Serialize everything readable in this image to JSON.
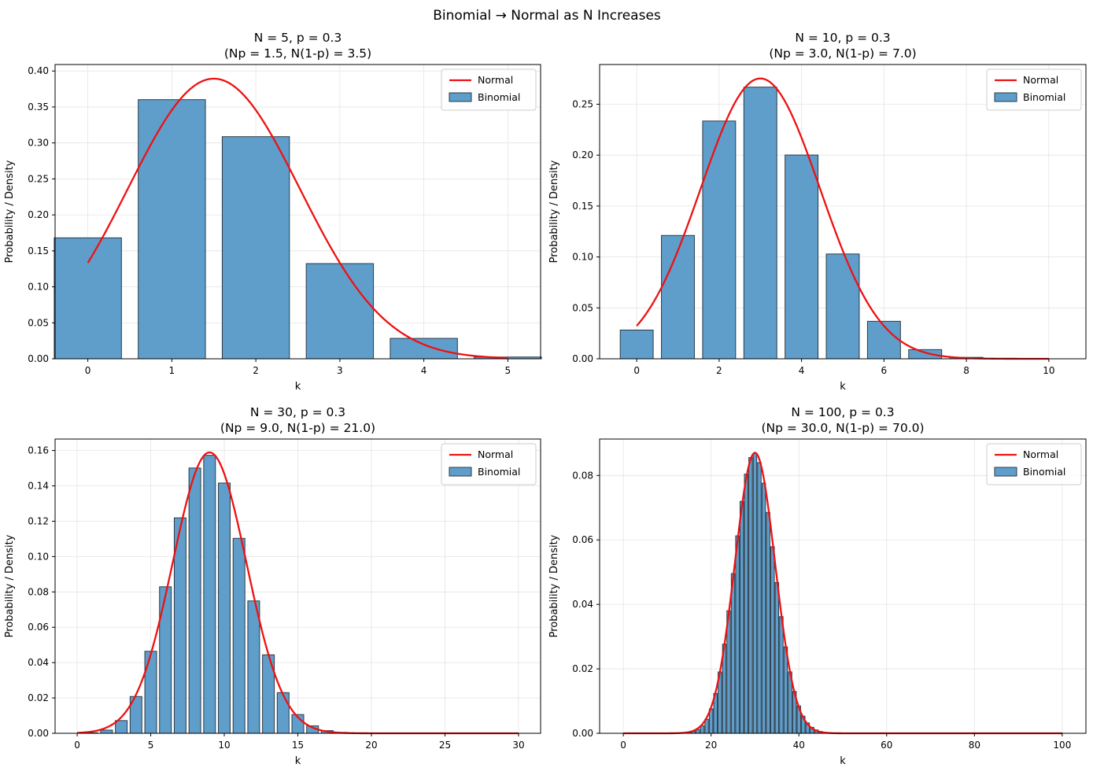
{
  "figure_title": "Binomial → Normal as N Increases",
  "colors": {
    "bar_fill": "#5f9ecb",
    "bar_edge": "#2b3a46",
    "normal_line": "#ee1111",
    "grid": "#e4e4e4"
  },
  "chart_data": [
    {
      "type": "bar",
      "title_line1": "N = 5, p = 0.3",
      "title_line2": "(Np = 1.5, N(1-p) = 3.5)",
      "xlabel": "k",
      "ylabel": "Probability / Density",
      "xlim": [
        -0.39,
        5.39
      ],
      "ylim": [
        0,
        0.409
      ],
      "xticks": [
        0,
        1,
        2,
        3,
        4,
        5
      ],
      "yticks": [
        0.0,
        0.05,
        0.1,
        0.15,
        0.2,
        0.25,
        0.3,
        0.35,
        0.4
      ],
      "ytick_decimals": 2,
      "n": 5,
      "p": 0.3,
      "bar_width": 0.8,
      "binomial_values": [
        0.16807,
        0.36015,
        0.3087,
        0.1323,
        0.02835,
        0.00243
      ],
      "normal": {
        "mean": 1.5,
        "sd": 1.0247,
        "x_range": [
          0,
          5
        ]
      },
      "legend": {
        "position": "top-right",
        "entries": [
          "Normal",
          "Binomial"
        ]
      }
    },
    {
      "type": "bar",
      "title_line1": "N = 10, p = 0.3",
      "title_line2": "(Np = 3.0, N(1-p) = 7.0)",
      "xlabel": "k",
      "ylabel": "Probability / Density",
      "xlim": [
        -0.9,
        10.9
      ],
      "ylim": [
        0,
        0.289
      ],
      "xticks": [
        0,
        2,
        4,
        6,
        8,
        10
      ],
      "yticks": [
        0.0,
        0.05,
        0.1,
        0.15,
        0.2,
        0.25
      ],
      "ytick_decimals": 2,
      "n": 10,
      "p": 0.3,
      "bar_width": 0.8,
      "binomial_values": [
        0.0282,
        0.1211,
        0.2335,
        0.2668,
        0.2001,
        0.1029,
        0.0368,
        0.009,
        0.0014,
        0.0001,
        0.0
      ],
      "normal": {
        "mean": 3.0,
        "sd": 1.4491,
        "x_range": [
          0,
          10
        ]
      },
      "legend": {
        "position": "top-right",
        "entries": [
          "Normal",
          "Binomial"
        ]
      }
    },
    {
      "type": "bar",
      "title_line1": "N = 30, p = 0.3",
      "title_line2": "(Np = 9.0, N(1-p) = 21.0)",
      "xlabel": "k",
      "ylabel": "Probability / Density",
      "xlim": [
        -1.5,
        31.5
      ],
      "ylim": [
        0,
        0.1665
      ],
      "xticks": [
        0,
        5,
        10,
        15,
        20,
        25,
        30
      ],
      "yticks": [
        0.0,
        0.02,
        0.04,
        0.06,
        0.08,
        0.1,
        0.12,
        0.14,
        0.16
      ],
      "ytick_decimals": 2,
      "n": 30,
      "p": 0.3,
      "bar_width": 0.8,
      "binomial_values": [
        2e-05,
        0.0003,
        0.0018,
        0.0072,
        0.0208,
        0.0464,
        0.0829,
        0.1219,
        0.1501,
        0.1573,
        0.1416,
        0.1103,
        0.0749,
        0.0444,
        0.023,
        0.0106,
        0.0042,
        0.0015,
        0.0005,
        0.0001,
        3e-05,
        0,
        0,
        0,
        0,
        0,
        0,
        0,
        0,
        0,
        0
      ],
      "normal": {
        "mean": 9.0,
        "sd": 2.51,
        "x_range": [
          0,
          30
        ]
      },
      "legend": {
        "position": "top-right",
        "entries": [
          "Normal",
          "Binomial"
        ]
      }
    },
    {
      "type": "bar",
      "title_line1": "N = 100, p = 0.3",
      "title_line2": "(Np = 30.0, N(1-p) = 70.0)",
      "xlabel": "k",
      "ylabel": "Probability / Density",
      "xlim": [
        -5.4,
        105.4
      ],
      "ylim": [
        0,
        0.0913
      ],
      "xticks": [
        0,
        20,
        40,
        60,
        80,
        100
      ],
      "yticks": [
        0.0,
        0.02,
        0.04,
        0.06,
        0.08
      ],
      "ytick_decimals": 2,
      "n": 100,
      "p": 0.3,
      "bar_width": 0.8,
      "binomial_values": [],
      "normal": {
        "mean": 30.0,
        "sd": 4.5826,
        "x_range": [
          0,
          100
        ]
      },
      "legend": {
        "position": "top-right",
        "entries": [
          "Normal",
          "Binomial"
        ]
      }
    }
  ]
}
